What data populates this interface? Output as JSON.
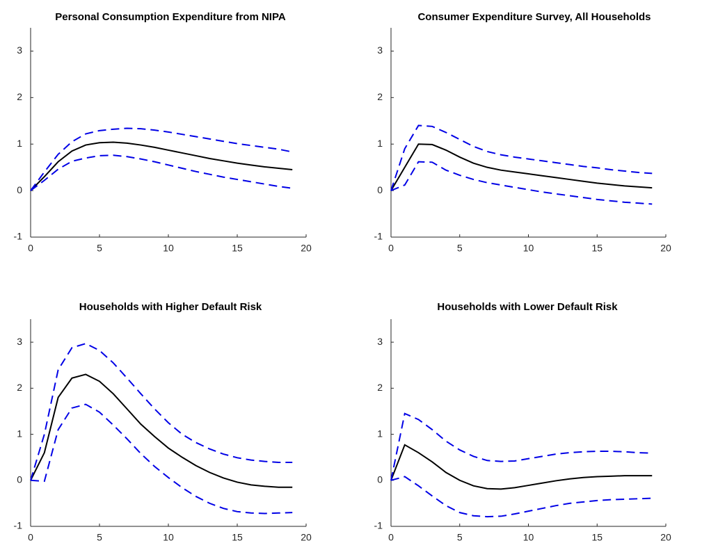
{
  "chart_data": [
    {
      "type": "line",
      "title": "Personal Consumption Expenditure from NIPA",
      "x": [
        0,
        1,
        2,
        3,
        4,
        5,
        6,
        7,
        8,
        9,
        10,
        11,
        12,
        13,
        14,
        15,
        16,
        17,
        18,
        19
      ],
      "series": [
        {
          "color": "#000000",
          "dashed": false,
          "values": [
            0,
            0.3,
            0.62,
            0.85,
            0.98,
            1.03,
            1.04,
            1.02,
            0.98,
            0.93,
            0.87,
            0.81,
            0.75,
            0.69,
            0.64,
            0.59,
            0.55,
            0.51,
            0.48,
            0.45
          ]
        },
        {
          "color": "#0000e6",
          "dashed": true,
          "values": [
            0,
            0.4,
            0.78,
            1.05,
            1.22,
            1.29,
            1.32,
            1.34,
            1.33,
            1.3,
            1.26,
            1.21,
            1.16,
            1.11,
            1.06,
            1.01,
            0.97,
            0.93,
            0.89,
            0.83
          ]
        },
        {
          "color": "#0000e6",
          "dashed": true,
          "values": [
            0,
            0.22,
            0.46,
            0.63,
            0.7,
            0.75,
            0.76,
            0.73,
            0.68,
            0.62,
            0.55,
            0.48,
            0.41,
            0.35,
            0.29,
            0.24,
            0.19,
            0.14,
            0.09,
            0.05
          ]
        }
      ],
      "xlim": [
        0,
        20
      ],
      "xticks": [
        0,
        5,
        10,
        15,
        20
      ],
      "ylim": [
        -1,
        3.5
      ],
      "yticks": [
        -1,
        0,
        1,
        2,
        3
      ]
    },
    {
      "type": "line",
      "title": "Consumer Expenditure Survey, All Households",
      "x": [
        0,
        1,
        2,
        3,
        4,
        5,
        6,
        7,
        8,
        9,
        10,
        11,
        12,
        13,
        14,
        15,
        16,
        17,
        18,
        19
      ],
      "series": [
        {
          "color": "#000000",
          "dashed": false,
          "values": [
            0,
            0.5,
            1.0,
            0.99,
            0.87,
            0.72,
            0.59,
            0.5,
            0.44,
            0.4,
            0.36,
            0.32,
            0.28,
            0.24,
            0.2,
            0.16,
            0.13,
            0.1,
            0.08,
            0.06
          ]
        },
        {
          "color": "#0000e6",
          "dashed": true,
          "values": [
            0,
            0.9,
            1.4,
            1.38,
            1.25,
            1.1,
            0.95,
            0.84,
            0.77,
            0.72,
            0.68,
            0.64,
            0.6,
            0.56,
            0.52,
            0.49,
            0.45,
            0.42,
            0.39,
            0.37
          ]
        },
        {
          "color": "#0000e6",
          "dashed": true,
          "values": [
            0,
            0.12,
            0.62,
            0.61,
            0.44,
            0.33,
            0.24,
            0.17,
            0.12,
            0.07,
            0.02,
            -0.03,
            -0.07,
            -0.11,
            -0.15,
            -0.19,
            -0.22,
            -0.25,
            -0.27,
            -0.29
          ]
        }
      ],
      "xlim": [
        0,
        20
      ],
      "xticks": [
        0,
        5,
        10,
        15,
        20
      ],
      "ylim": [
        -1,
        3.5
      ],
      "yticks": [
        -1,
        0,
        1,
        2,
        3
      ]
    },
    {
      "type": "line",
      "title": "Households with Higher Default Risk",
      "x": [
        0,
        1,
        2,
        3,
        4,
        5,
        6,
        7,
        8,
        9,
        10,
        11,
        12,
        13,
        14,
        15,
        16,
        17,
        18,
        19
      ],
      "series": [
        {
          "color": "#000000",
          "dashed": false,
          "values": [
            0,
            0.6,
            1.8,
            2.22,
            2.3,
            2.15,
            1.88,
            1.55,
            1.22,
            0.95,
            0.7,
            0.5,
            0.32,
            0.17,
            0.05,
            -0.04,
            -0.1,
            -0.13,
            -0.15,
            -0.15
          ]
        },
        {
          "color": "#0000e6",
          "dashed": true,
          "values": [
            0,
            1.0,
            2.4,
            2.88,
            2.97,
            2.82,
            2.55,
            2.22,
            1.88,
            1.55,
            1.25,
            1.0,
            0.82,
            0.68,
            0.57,
            0.49,
            0.44,
            0.41,
            0.39,
            0.39
          ]
        },
        {
          "color": "#0000e6",
          "dashed": true,
          "values": [
            0,
            -0.02,
            1.1,
            1.57,
            1.65,
            1.48,
            1.2,
            0.9,
            0.58,
            0.3,
            0.06,
            -0.16,
            -0.35,
            -0.5,
            -0.61,
            -0.68,
            -0.71,
            -0.72,
            -0.71,
            -0.7
          ]
        }
      ],
      "xlim": [
        0,
        20
      ],
      "xticks": [
        0,
        5,
        10,
        15,
        20
      ],
      "ylim": [
        -1,
        3.5
      ],
      "yticks": [
        -1,
        0,
        1,
        2,
        3
      ]
    },
    {
      "type": "line",
      "title": "Households with Lower Default Risk",
      "x": [
        0,
        1,
        2,
        3,
        4,
        5,
        6,
        7,
        8,
        9,
        10,
        11,
        12,
        13,
        14,
        15,
        16,
        17,
        18,
        19
      ],
      "series": [
        {
          "color": "#000000",
          "dashed": false,
          "values": [
            0,
            0.77,
            0.6,
            0.4,
            0.17,
            0,
            -0.12,
            -0.18,
            -0.19,
            -0.16,
            -0.11,
            -0.06,
            -0.01,
            0.03,
            0.06,
            0.08,
            0.09,
            0.1,
            0.1,
            0.1
          ]
        },
        {
          "color": "#0000e6",
          "dashed": true,
          "values": [
            0,
            1.45,
            1.32,
            1.1,
            0.85,
            0.66,
            0.52,
            0.43,
            0.41,
            0.42,
            0.47,
            0.52,
            0.57,
            0.6,
            0.62,
            0.63,
            0.63,
            0.62,
            0.6,
            0.59
          ]
        },
        {
          "color": "#0000e6",
          "dashed": true,
          "values": [
            0,
            0.08,
            -0.12,
            -0.34,
            -0.55,
            -0.7,
            -0.77,
            -0.79,
            -0.78,
            -0.73,
            -0.67,
            -0.61,
            -0.55,
            -0.5,
            -0.47,
            -0.44,
            -0.42,
            -0.41,
            -0.4,
            -0.39
          ]
        }
      ],
      "xlim": [
        0,
        20
      ],
      "xticks": [
        0,
        5,
        10,
        15,
        20
      ],
      "ylim": [
        -1,
        3.5
      ],
      "yticks": [
        -1,
        0,
        1,
        2,
        3
      ]
    }
  ]
}
